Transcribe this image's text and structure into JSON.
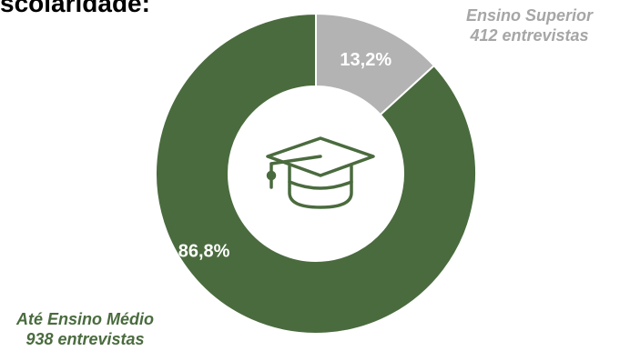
{
  "page": {
    "title": "scolaridade:"
  },
  "chart_data": {
    "type": "pie",
    "style": "donut",
    "categories": [
      "Ensino Superior",
      "Até Ensino Médio"
    ],
    "values": [
      13.2,
      86.8
    ],
    "value_labels": [
      "13,2%",
      "86,8%"
    ],
    "colors": [
      "#b3b3b3",
      "#4a6b3e"
    ],
    "legend": [
      {
        "name": "Ensino Superior",
        "detail": "412 entrevistas",
        "color": "#a6a6a6"
      },
      {
        "name": "Até Ensino Médio",
        "detail": "938 entrevistas",
        "color": "#4a6b3e"
      }
    ],
    "center_icon": "graduation-cap-icon"
  }
}
